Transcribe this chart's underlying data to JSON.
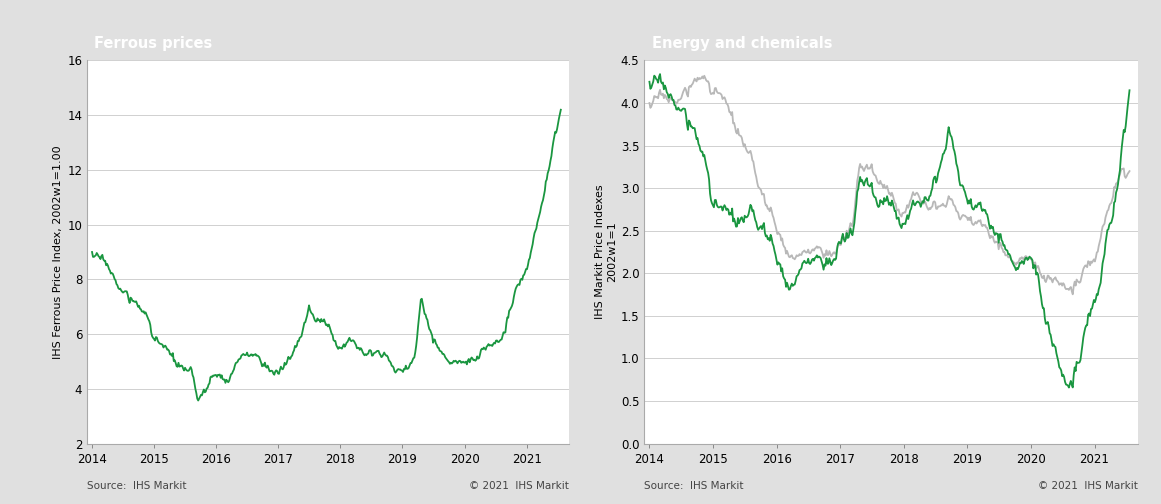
{
  "left_title": "Ferrous prices",
  "right_title": "Energy and chemicals",
  "left_ylabel": "IHS Ferrous Price Index, 2002w1=1.00",
  "right_ylabel": "IHS Markit Price Indexes\n2002w1=1",
  "source_text": "Source:  IHS Markit",
  "copyright_text": "© 2021  IHS Markit",
  "header_bg": "#7f7f7f",
  "header_text_color": "#ffffff",
  "plot_bg": "#ffffff",
  "outer_bg": "#e0e0e0",
  "green_color": "#1a9640",
  "gray_color": "#b8b8b8",
  "grid_color": "#d0d0d0",
  "left_ylim": [
    2.0,
    16.0
  ],
  "left_yticks": [
    2.0,
    4.0,
    6.0,
    8.0,
    10.0,
    12.0,
    14.0,
    16.0
  ],
  "right_ylim": [
    0.0,
    4.5
  ],
  "right_yticks": [
    0.0,
    0.5,
    1.0,
    1.5,
    2.0,
    2.5,
    3.0,
    3.5,
    4.0,
    4.5
  ],
  "x_labels": [
    "2014",
    "2015",
    "2016",
    "2017",
    "2018",
    "2019",
    "2020",
    "2021"
  ]
}
